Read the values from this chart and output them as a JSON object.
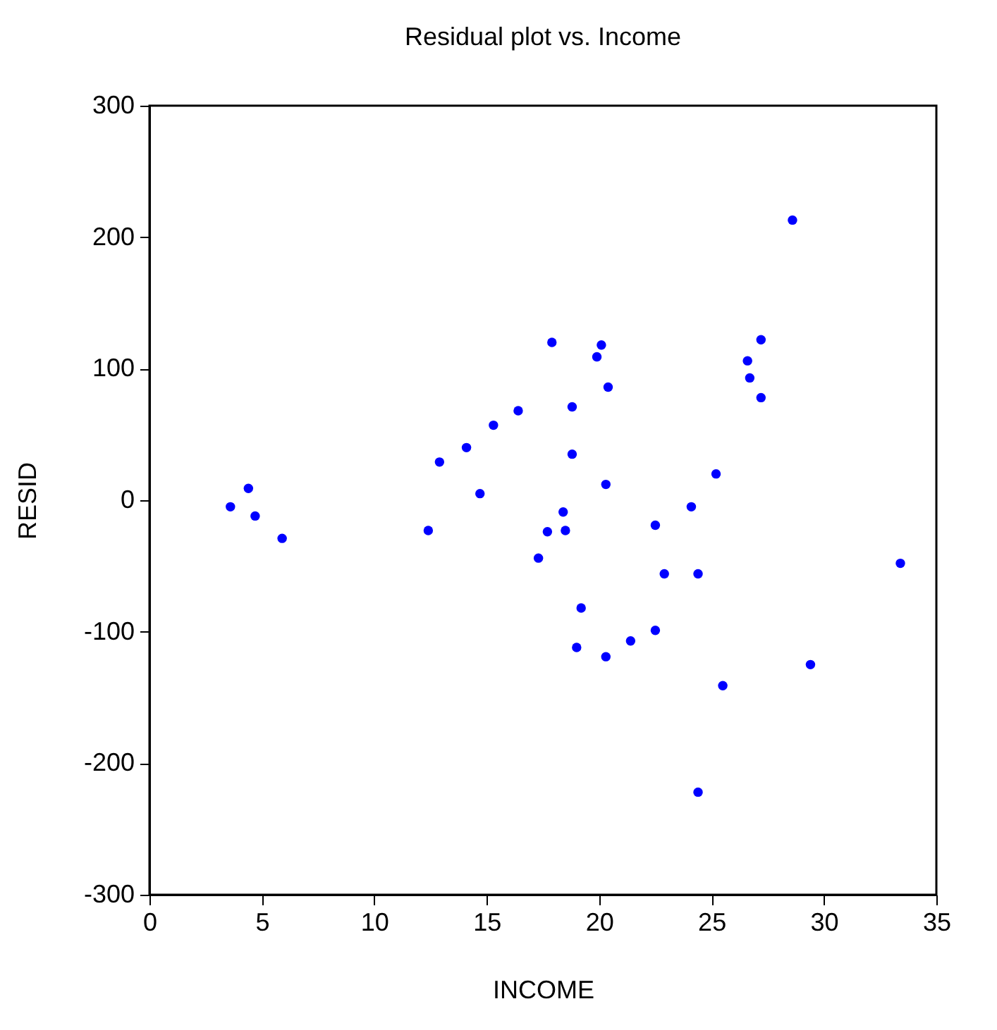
{
  "chart_data": {
    "type": "scatter",
    "title": "Residual plot vs. Income",
    "xlabel": "INCOME",
    "ylabel": "RESID",
    "xlim": [
      0,
      35
    ],
    "xticks": [
      0,
      5,
      10,
      15,
      20,
      25,
      30,
      35
    ],
    "ylim": [
      -300,
      300
    ],
    "yticks": [
      -300,
      -200,
      -100,
      0,
      100,
      200,
      300
    ],
    "grid": false,
    "legend": false,
    "marker": "circle",
    "series": [
      {
        "color": "#0000ff",
        "x": [
          3.6,
          4.4,
          4.7,
          5.9,
          12.4,
          12.9,
          14.1,
          14.7,
          15.3,
          16.4,
          17.3,
          17.7,
          17.9,
          18.4,
          18.5,
          18.8,
          18.8,
          19.0,
          19.2,
          19.9,
          20.1,
          20.3,
          20.3,
          20.4,
          21.4,
          22.5,
          22.5,
          22.9,
          24.1,
          24.4,
          24.4,
          25.2,
          25.5,
          26.6,
          26.7,
          27.2,
          27.2,
          28.6,
          29.4,
          33.4
        ],
        "values": [
          -5,
          9,
          -12,
          -29,
          -23,
          29,
          40,
          5,
          57,
          68,
          -44,
          -24,
          120,
          -9,
          -23,
          71,
          35,
          -112,
          -82,
          109,
          118,
          -119,
          12,
          86,
          -107,
          -99,
          -19,
          -56,
          -5,
          -56,
          -222,
          20,
          -141,
          106,
          93,
          122,
          78,
          213,
          -125,
          -48
        ]
      }
    ]
  }
}
